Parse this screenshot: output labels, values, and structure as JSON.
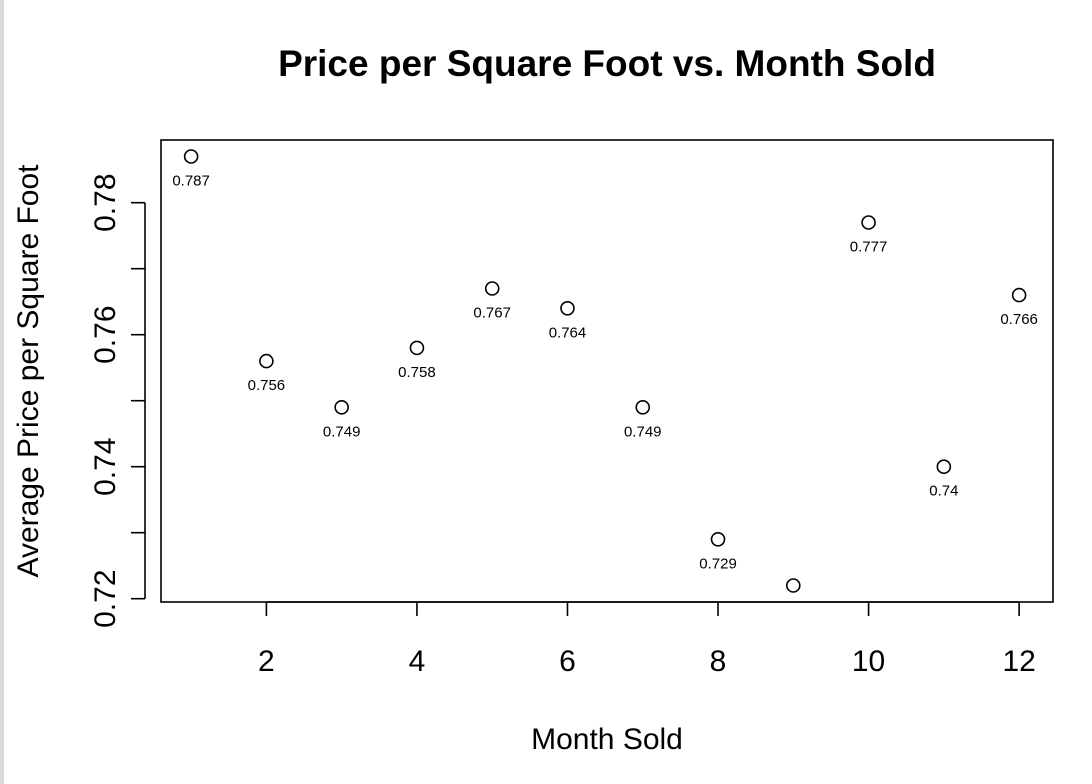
{
  "chart_data": {
    "type": "scatter",
    "title": "Price per Square Foot vs. Month Sold",
    "xlabel": "Month Sold",
    "ylabel": "Average Price per Square Foot",
    "xlim": [
      0.6,
      12.45
    ],
    "ylim": [
      0.7195,
      0.7895
    ],
    "x_ticks": [
      2,
      4,
      6,
      8,
      10,
      12
    ],
    "y_ticks": [
      0.72,
      0.73,
      0.74,
      0.75,
      0.76,
      0.77,
      0.78
    ],
    "y_tick_labels": [
      "0.72",
      "",
      "0.74",
      "",
      "0.76",
      "",
      "0.78"
    ],
    "grid": false,
    "marker": "open-circle",
    "points": [
      {
        "x": 1,
        "y": 0.787,
        "label": "0.787"
      },
      {
        "x": 2,
        "y": 0.756,
        "label": "0.756"
      },
      {
        "x": 3,
        "y": 0.749,
        "label": "0.749"
      },
      {
        "x": 4,
        "y": 0.758,
        "label": "0.758"
      },
      {
        "x": 5,
        "y": 0.767,
        "label": "0.767"
      },
      {
        "x": 6,
        "y": 0.764,
        "label": "0.764"
      },
      {
        "x": 7,
        "y": 0.749,
        "label": "0.749"
      },
      {
        "x": 8,
        "y": 0.729,
        "label": "0.729"
      },
      {
        "x": 9,
        "y": 0.722,
        "label": ""
      },
      {
        "x": 10,
        "y": 0.777,
        "label": "0.777"
      },
      {
        "x": 11,
        "y": 0.74,
        "label": "0.74"
      },
      {
        "x": 12,
        "y": 0.766,
        "label": "0.766"
      }
    ]
  }
}
